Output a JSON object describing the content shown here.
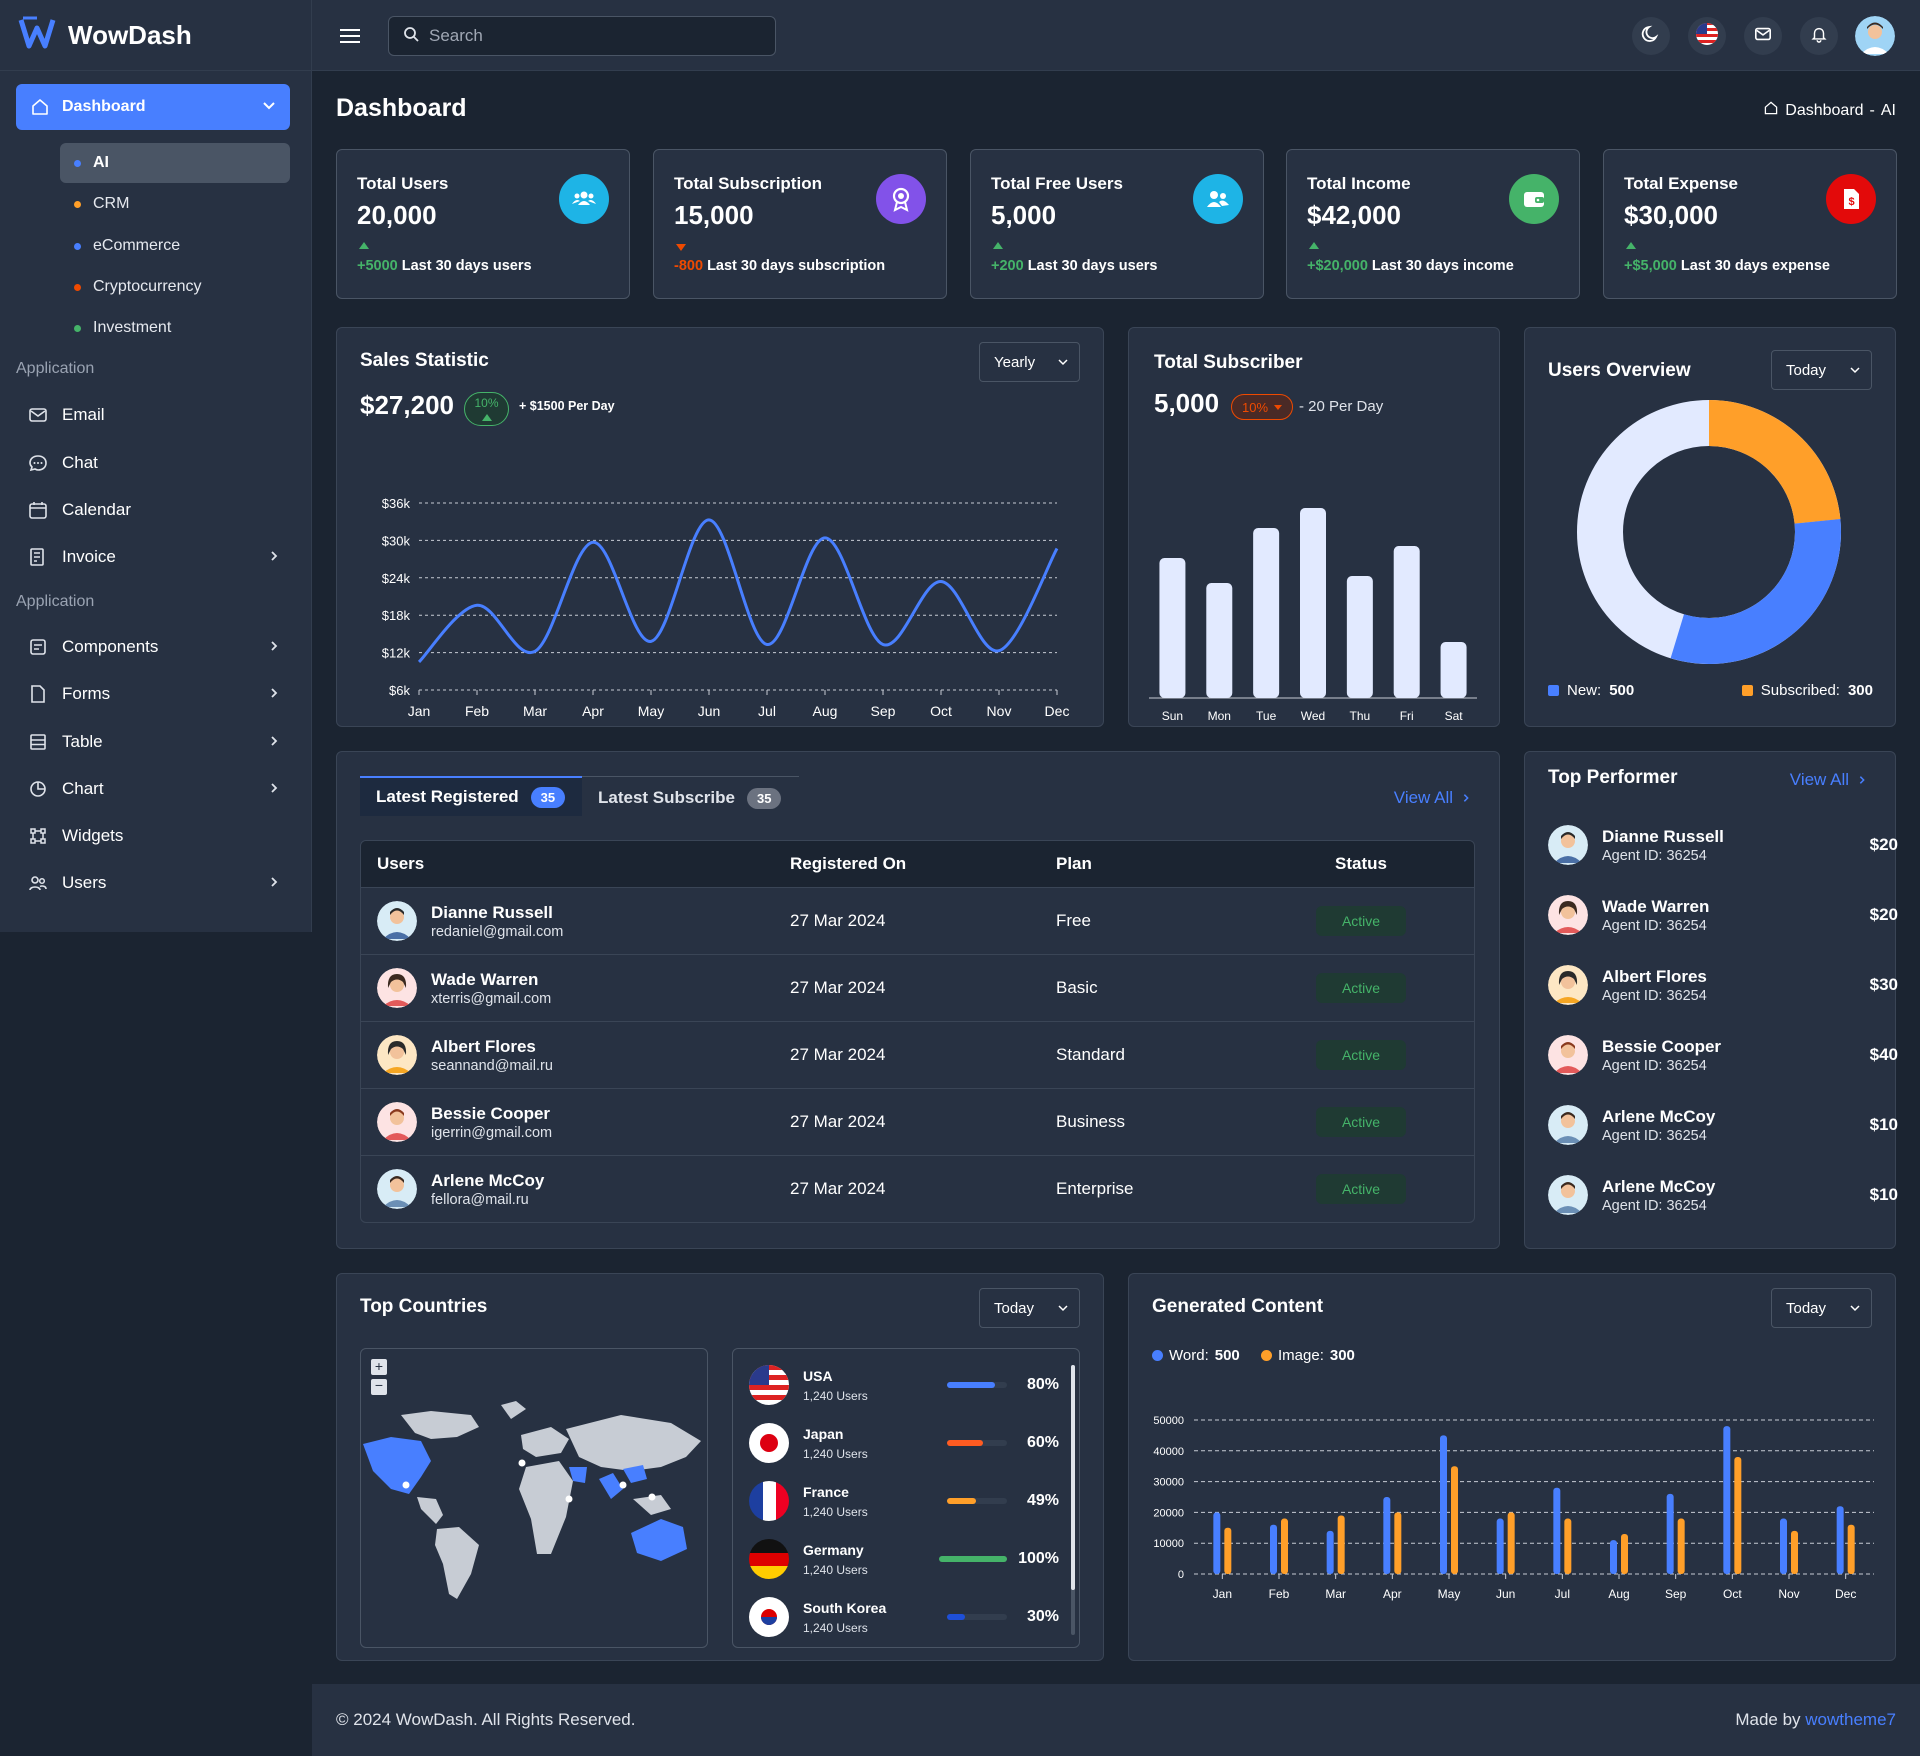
{
  "app": {
    "name": "WowDash"
  },
  "search": {
    "placeholder": "Search"
  },
  "sidebar": {
    "dashboard": "Dashboard",
    "sub": [
      {
        "label": "AI",
        "color": "#487fff"
      },
      {
        "label": "CRM",
        "color": "#ff9f29"
      },
      {
        "label": "eCommerce",
        "color": "#487fff"
      },
      {
        "label": "Cryptocurrency",
        "color": "#ef4a00"
      },
      {
        "label": "Investment",
        "color": "#45b369"
      }
    ],
    "section1": "Application",
    "app_items": [
      {
        "label": "Email",
        "icon": "mail-icon"
      },
      {
        "label": "Chat",
        "icon": "chat-icon"
      },
      {
        "label": "Calendar",
        "icon": "calendar-icon"
      },
      {
        "label": "Invoice",
        "icon": "invoice-icon"
      }
    ],
    "section2": "Application",
    "ui_items": [
      {
        "label": "Components",
        "icon": "components-icon"
      },
      {
        "label": "Forms",
        "icon": "forms-icon"
      },
      {
        "label": "Table",
        "icon": "table-icon"
      },
      {
        "label": "Chart",
        "icon": "chart-icon"
      },
      {
        "label": "Widgets",
        "icon": "widgets-icon"
      },
      {
        "label": "Users",
        "icon": "users-icon"
      }
    ]
  },
  "page": {
    "title": "Dashboard",
    "crumb_home": "Dashboard",
    "crumb_sep": "-",
    "crumb_current": "AI"
  },
  "stats": [
    {
      "label": "Total Users",
      "value": "20,000",
      "delta": "+5000",
      "delta_color": "#45b369",
      "trend": "up",
      "note": "Last 30 days users",
      "icon_bg": "#1eb4e6",
      "icon": "users-group-icon"
    },
    {
      "label": "Total Subscription",
      "value": "15,000",
      "delta": "-800",
      "delta_color": "#ef4a00",
      "trend": "down",
      "note": "Last 30 days subscription",
      "icon_bg": "#8252e9",
      "icon": "award-icon"
    },
    {
      "label": "Total Free Users",
      "value": "5,000",
      "delta": "+200",
      "delta_color": "#45b369",
      "trend": "up",
      "note": "Last 30 days users",
      "icon_bg": "#1eb4e6",
      "icon": "users-icon"
    },
    {
      "label": "Total Income",
      "value": "$42,000",
      "delta": "+$20,000",
      "delta_color": "#45b369",
      "trend": "up",
      "note": "Last 30 days income",
      "icon_bg": "#45b369",
      "icon": "wallet-icon"
    },
    {
      "label": "Total Expense",
      "value": "$30,000",
      "delta": "+$5,000",
      "delta_color": "#45b369",
      "trend": "up",
      "note": "Last 30 days expense",
      "icon_bg": "#e30a0a",
      "icon": "invoice-dollar-icon"
    }
  ],
  "sales": {
    "title": "Sales Statistic",
    "value": "$27,200",
    "pct": "10%",
    "per_day": "+ $1500 Per Day",
    "select": "Yearly"
  },
  "subscriber": {
    "title": "Total Subscriber",
    "value": "5,000",
    "pct": "10%",
    "per_day": "- 20 Per Day"
  },
  "overview": {
    "title": "Users Overview",
    "select": "Today",
    "new_label": "New:",
    "new_value": "500",
    "sub_label": "Subscribed:",
    "sub_value": "300"
  },
  "tabs": {
    "registered": "Latest Registered",
    "registered_count": "35",
    "subscribe": "Latest Subscribe",
    "subscribe_count": "35",
    "view_all": "View All"
  },
  "table": {
    "headers": [
      "Users",
      "Registered On",
      "Plan",
      "Status"
    ],
    "rows": [
      {
        "name": "Dianne Russell",
        "email": "redaniel@gmail.com",
        "date": "27 Mar 2024",
        "plan": "Free",
        "status": "Active"
      },
      {
        "name": "Wade Warren",
        "email": "xterris@gmail.com",
        "date": "27 Mar 2024",
        "plan": "Basic",
        "status": "Active"
      },
      {
        "name": "Albert Flores",
        "email": "seannand@mail.ru",
        "date": "27 Mar 2024",
        "plan": "Standard",
        "status": "Active"
      },
      {
        "name": "Bessie Cooper",
        "email": "igerrin@gmail.com",
        "date": "27 Mar 2024",
        "plan": "Business",
        "status": "Active"
      },
      {
        "name": "Arlene McCoy",
        "email": "fellora@mail.ru",
        "date": "27 Mar 2024",
        "plan": "Enterprise",
        "status": "Active"
      }
    ]
  },
  "performer": {
    "title": "Top Performer",
    "view_all": "View All",
    "items": [
      {
        "name": "Dianne Russell",
        "id": "Agent ID: 36254",
        "amount": "$20"
      },
      {
        "name": "Wade Warren",
        "id": "Agent ID: 36254",
        "amount": "$20"
      },
      {
        "name": "Albert Flores",
        "id": "Agent ID: 36254",
        "amount": "$30"
      },
      {
        "name": "Bessie Cooper",
        "id": "Agent ID: 36254",
        "amount": "$40"
      },
      {
        "name": "Arlene McCoy",
        "id": "Agent ID: 36254",
        "amount": "$10"
      },
      {
        "name": "Arlene McCoy",
        "id": "Agent ID: 36254",
        "amount": "$10"
      }
    ]
  },
  "countries": {
    "title": "Top Countries",
    "select": "Today",
    "items": [
      {
        "name": "USA",
        "users": "1,240 Users",
        "pct": "80%",
        "value": 80,
        "color": "#487fff",
        "flag": "usa-flag-icon"
      },
      {
        "name": "Japan",
        "users": "1,240 Users",
        "pct": "60%",
        "value": 60,
        "color": "#ff5b21",
        "flag": "japan-flag-icon"
      },
      {
        "name": "France",
        "users": "1,240 Users",
        "pct": "49%",
        "value": 49,
        "color": "#ff9f29",
        "flag": "france-flag-icon"
      },
      {
        "name": "Germany",
        "users": "1,240 Users",
        "pct": "100%",
        "value": 100,
        "color": "#45b369",
        "flag": "germany-flag-icon"
      },
      {
        "name": "South Korea",
        "users": "1,240 Users",
        "pct": "30%",
        "value": 30,
        "color": "#1e4fd8",
        "flag": "korea-flag-icon"
      }
    ]
  },
  "generated": {
    "title": "Generated Content",
    "select": "Today",
    "word_label": "Word:",
    "word_value": "500",
    "image_label": "Image:",
    "image_value": "300"
  },
  "footer": {
    "copy": "© 2024 WowDash. All Rights Reserved.",
    "made_by": "Made by",
    "author": "wowtheme7"
  },
  "chart_data": [
    {
      "type": "line",
      "title": "Sales Statistic",
      "categories": [
        "Jan",
        "Feb",
        "Mar",
        "Apr",
        "May",
        "Jun",
        "Jul",
        "Aug",
        "Sep",
        "Oct",
        "Nov",
        "Dec"
      ],
      "values": [
        10500,
        19600,
        12200,
        29700,
        13800,
        33300,
        13300,
        30400,
        13300,
        23400,
        12300,
        28700
      ],
      "yticks": [
        "$6k",
        "$12k",
        "$18k",
        "$24k",
        "$30k",
        "$36k"
      ],
      "ylim": [
        6000,
        36000
      ],
      "color": "#487fff",
      "grid": true
    },
    {
      "type": "bar",
      "title": "Total Subscriber",
      "categories": [
        "Sun",
        "Mon",
        "Tue",
        "Wed",
        "Thu",
        "Fri",
        "Sat"
      ],
      "values": [
        14,
        11.5,
        17,
        19,
        12.2,
        15.2,
        5.6
      ],
      "color": "#e2eaff"
    },
    {
      "type": "pie",
      "title": "Users Overview",
      "labels": [
        "New",
        "Subscribed"
      ],
      "values": [
        500,
        300
      ],
      "colors": [
        "#487fff",
        "#ff9f29"
      ],
      "remainder_color": "#e2eaff"
    },
    {
      "type": "bar",
      "title": "Generated Content",
      "categories": [
        "Jan",
        "Feb",
        "Mar",
        "Apr",
        "May",
        "Jun",
        "Jul",
        "Aug",
        "Sep",
        "Oct",
        "Nov",
        "Dec"
      ],
      "series": [
        {
          "name": "Word",
          "values": [
            20000,
            16000,
            14000,
            25000,
            45000,
            18000,
            28000,
            11000,
            26000,
            48000,
            18000,
            22000
          ],
          "color": "#487fff"
        },
        {
          "name": "Image",
          "values": [
            15000,
            18000,
            19000,
            20000,
            35000,
            20000,
            18000,
            13000,
            18000,
            38000,
            14000,
            16000
          ],
          "color": "#ff9f29"
        }
      ],
      "yticks": [
        "0",
        "10000",
        "20000",
        "30000",
        "40000",
        "50000"
      ],
      "ylim": [
        0,
        50000
      ],
      "grid": true
    }
  ]
}
